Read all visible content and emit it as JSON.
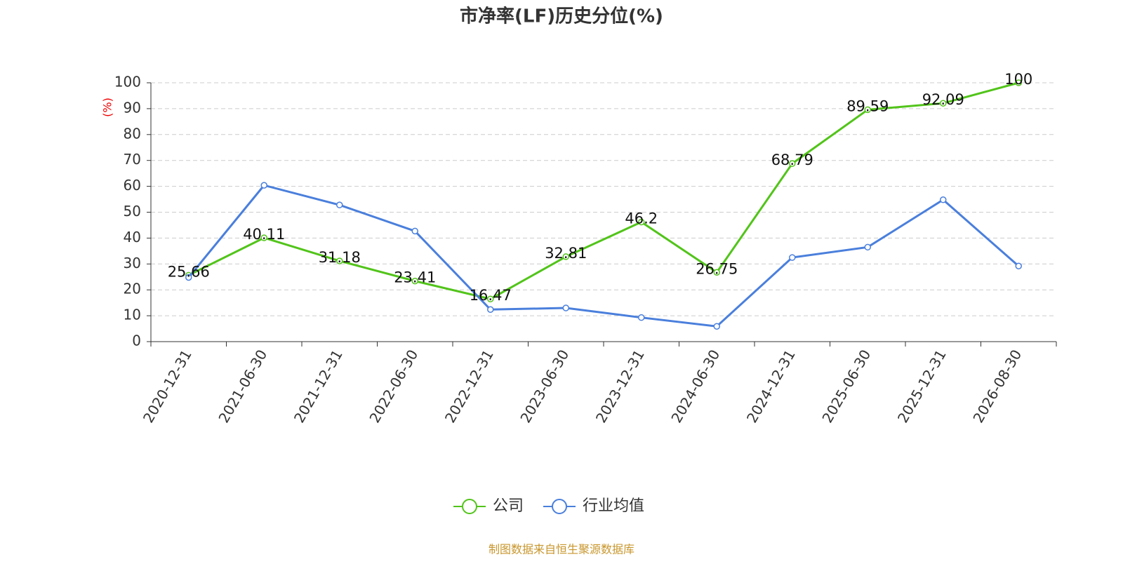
{
  "chart_data": {
    "type": "line",
    "title": "市净率(LF)历史分位(%)",
    "y_label": "(%)",
    "categories": [
      "2020-12-31",
      "2021-06-30",
      "2021-12-31",
      "2022-06-30",
      "2022-12-31",
      "2023-06-30",
      "2023-12-31",
      "2024-06-30",
      "2024-12-31",
      "2025-06-30",
      "2025-12-31",
      "2026-08-30"
    ],
    "series": [
      {
        "name": "公司",
        "color": "#52c41a",
        "values": [
          25.66,
          40.11,
          31.18,
          23.41,
          16.47,
          32.81,
          46.2,
          26.75,
          68.79,
          89.59,
          92.09,
          100
        ],
        "show_labels": true
      },
      {
        "name": "行业均值",
        "color": "#4a7fdc",
        "values": [
          24.8,
          60.4,
          52.8,
          42.7,
          12.4,
          13.0,
          9.3,
          5.9,
          32.5,
          36.5,
          54.8,
          29.2
        ],
        "show_labels": false
      }
    ],
    "ylim": [
      0,
      100
    ],
    "yticks": [
      0,
      10,
      20,
      30,
      40,
      50,
      60,
      70,
      80,
      90,
      100
    ],
    "grid": true,
    "legend": "bottom",
    "source": "制图数据来自恒生聚源数据库"
  }
}
